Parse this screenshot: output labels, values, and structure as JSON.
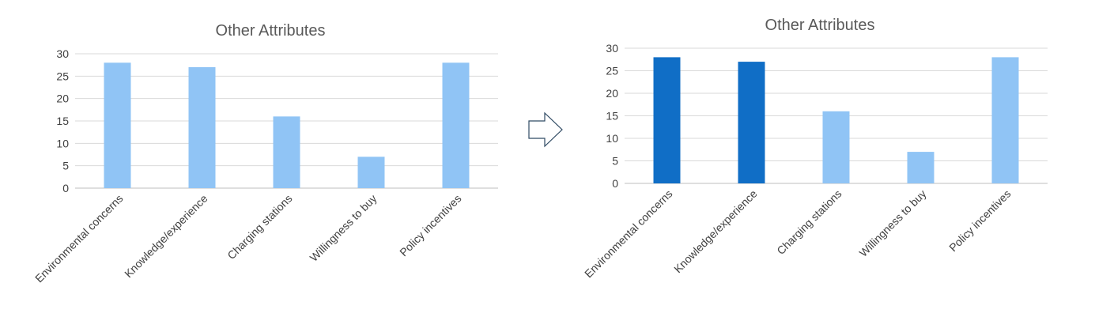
{
  "chart_data": [
    {
      "type": "bar",
      "title": "Other Attributes",
      "categories": [
        "Environmental concerns",
        "Knowledge/experience",
        "Charging stations",
        "Willingness to buy",
        "Policy incentives"
      ],
      "values": [
        28,
        27,
        16,
        7,
        28
      ],
      "yticks": [
        "0",
        "5",
        "10",
        "15",
        "20",
        "25",
        "30"
      ],
      "ylim": [
        0,
        30
      ],
      "bar_colors": [
        "#90C4F5",
        "#90C4F5",
        "#90C4F5",
        "#90C4F5",
        "#90C4F5"
      ],
      "grid": true,
      "legend": "none"
    },
    {
      "type": "bar",
      "title": "Other Attributes",
      "categories": [
        "Environmental concerns",
        "Knowledge/experience",
        "Charging stations",
        "Willingness to buy",
        "Policy incentives"
      ],
      "values": [
        28,
        27,
        16,
        7,
        28
      ],
      "yticks": [
        "0",
        "5",
        "10",
        "15",
        "20",
        "25",
        "30"
      ],
      "ylim": [
        0,
        30
      ],
      "bar_colors": [
        "#106EC6",
        "#106EC6",
        "#90C4F5",
        "#90C4F5",
        "#90C4F5"
      ],
      "grid": true,
      "legend": "none"
    }
  ],
  "transition_arrow": {
    "icon": "right-arrow-icon",
    "stroke": "#2F4A63",
    "fill": "#ffffff"
  }
}
